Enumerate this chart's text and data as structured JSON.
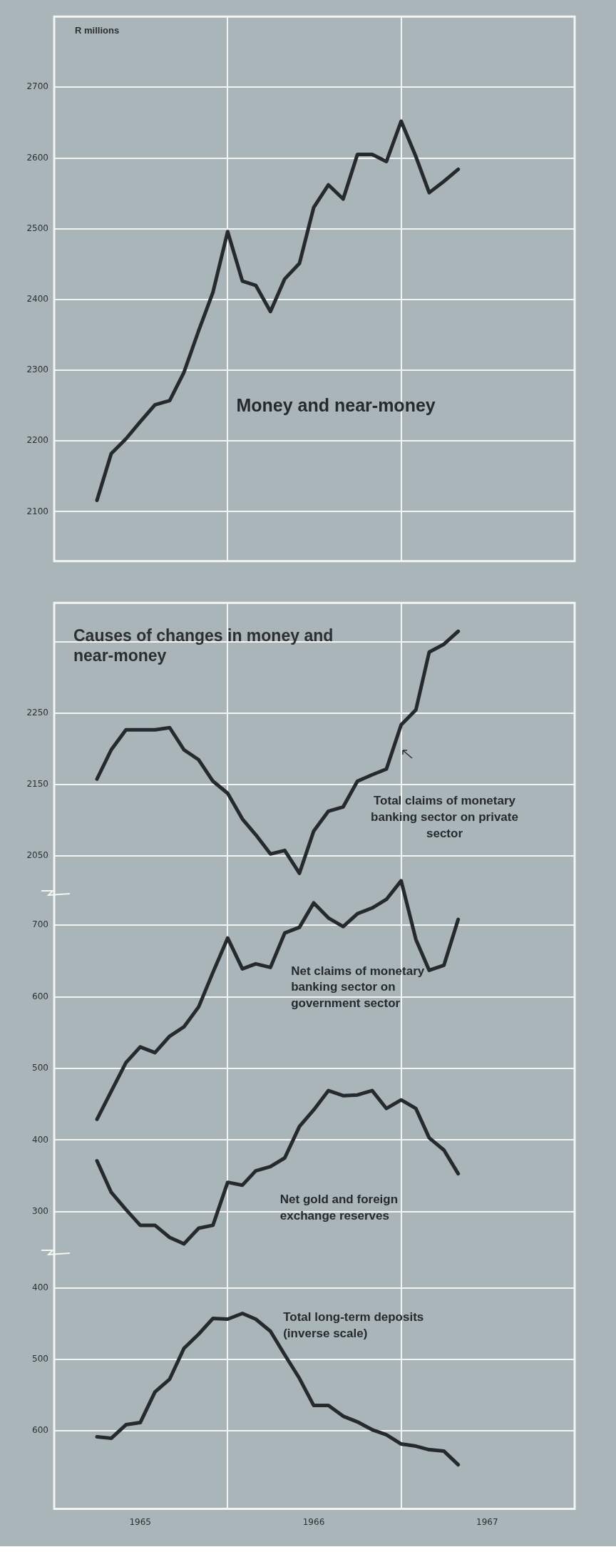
{
  "chart_data": [
    {
      "type": "line",
      "ylabel": "R millions",
      "x": [
        "1965-04",
        "1965-05",
        "1965-06",
        "1965-07",
        "1965-08",
        "1965-09",
        "1965-10",
        "1965-11",
        "1965-12",
        "1966-01",
        "1966-02",
        "1966-03",
        "1966-04",
        "1966-05",
        "1966-06",
        "1966-07",
        "1966-08",
        "1966-09",
        "1966-10",
        "1966-11",
        "1966-12",
        "1967-01",
        "1967-02",
        "1967-03",
        "1967-04",
        "1967-05"
      ],
      "series": [
        {
          "name": "Money and near-money",
          "color": "#262a2c",
          "values": [
            2116,
            2182,
            2203,
            2227,
            2251,
            2257,
            2297,
            2356,
            2410,
            2496,
            2426,
            2420,
            2383,
            2429,
            2451,
            2530,
            2562,
            2542,
            2605,
            2605,
            2595,
            2652,
            2602,
            2551,
            2567,
            2584
          ]
        }
      ],
      "xlim": [
        "1965-01",
        "1968-01"
      ],
      "xticks": [
        {
          "value": "1965-01",
          "label": null
        },
        {
          "value": "1966-01",
          "label": null
        },
        {
          "value": "1967-01",
          "label": null
        },
        {
          "value": "1968-01",
          "label": null
        }
      ],
      "ylim": [
        2030,
        2800
      ],
      "yticks": [
        2100,
        2200,
        2300,
        2400,
        2500,
        2600,
        2700
      ],
      "tick_labels": "y",
      "grid": true,
      "marker": "none"
    },
    {
      "type": "line",
      "title": "Causes of changes in money and near-money",
      "x": [
        "1965-04",
        "1965-05",
        "1965-06",
        "1965-07",
        "1965-08",
        "1965-09",
        "1965-10",
        "1965-11",
        "1965-12",
        "1966-01",
        "1966-02",
        "1966-03",
        "1966-04",
        "1966-05",
        "1966-06",
        "1966-07",
        "1966-08",
        "1966-09",
        "1966-10",
        "1966-11",
        "1966-12",
        "1967-01",
        "1967-02",
        "1967-03",
        "1967-04",
        "1967-05"
      ],
      "series": [
        {
          "name": "Total claims of monetary banking sector on private sector",
          "color": "#262a2c",
          "axis": "y",
          "values": [
            2158,
            2199,
            2227,
            2227,
            2227,
            2230,
            2199,
            2185,
            2155,
            2138,
            2102,
            2080,
            2053,
            2058,
            2026,
            2085,
            2113,
            2119,
            2155,
            2164,
            2172,
            2234,
            2255,
            2336,
            2347,
            2365
          ]
        },
        {
          "name": "Net claims of monetary banking sector on government sector",
          "color": "#262a2c",
          "axis": "y2",
          "values": [
            429,
            468,
            508,
            530,
            522,
            545,
            558,
            586,
            634,
            682,
            639,
            646,
            641,
            689,
            697,
            731,
            710,
            698,
            716,
            724,
            736,
            762,
            680,
            637,
            644,
            708
          ]
        },
        {
          "name": "Net gold and foreign exchange reserves",
          "color": "#262a2c",
          "axis": "y2",
          "values": [
            371,
            327,
            303,
            281,
            281,
            264,
            255,
            277,
            281,
            341,
            337,
            357,
            363,
            375,
            419,
            442,
            469,
            462,
            463,
            469,
            444,
            456,
            444,
            403,
            386,
            353
          ]
        },
        {
          "name": "Total long-term deposits (inverse scale)",
          "color": "#262a2c",
          "axis": "y3",
          "values": [
            609,
            611,
            592,
            589,
            546,
            528,
            485,
            465,
            443,
            444,
            436,
            444,
            461,
            494,
            527,
            565,
            565,
            580,
            588,
            599,
            606,
            619,
            622,
            627,
            629,
            648
          ]
        }
      ],
      "xlim": [
        "1965-01",
        "1968-01"
      ],
      "xticks": [
        {
          "value": "1965-01",
          "label": null
        },
        {
          "value": "1965-07",
          "label": "1965"
        },
        {
          "value": "1966-01",
          "label": null
        },
        {
          "value": "1966-07",
          "label": "1966"
        },
        {
          "value": "1967-01",
          "label": null
        },
        {
          "value": "1967-07",
          "label": "1967"
        },
        {
          "value": "1968-01",
          "label": null
        }
      ],
      "ylim": [
        1135,
        2405
      ],
      "yticks": [
        2050,
        2150,
        2250,
        {
          "value": 2350,
          "label": null
        }
      ],
      "y2lim": [
        -115,
        1150
      ],
      "y2ticks": [
        300,
        400,
        500,
        600,
        700
      ],
      "y3lim": [
        710,
        -560
      ],
      "y3ticks": [
        400,
        500,
        600
      ],
      "grid": true,
      "marker": "none"
    }
  ]
}
